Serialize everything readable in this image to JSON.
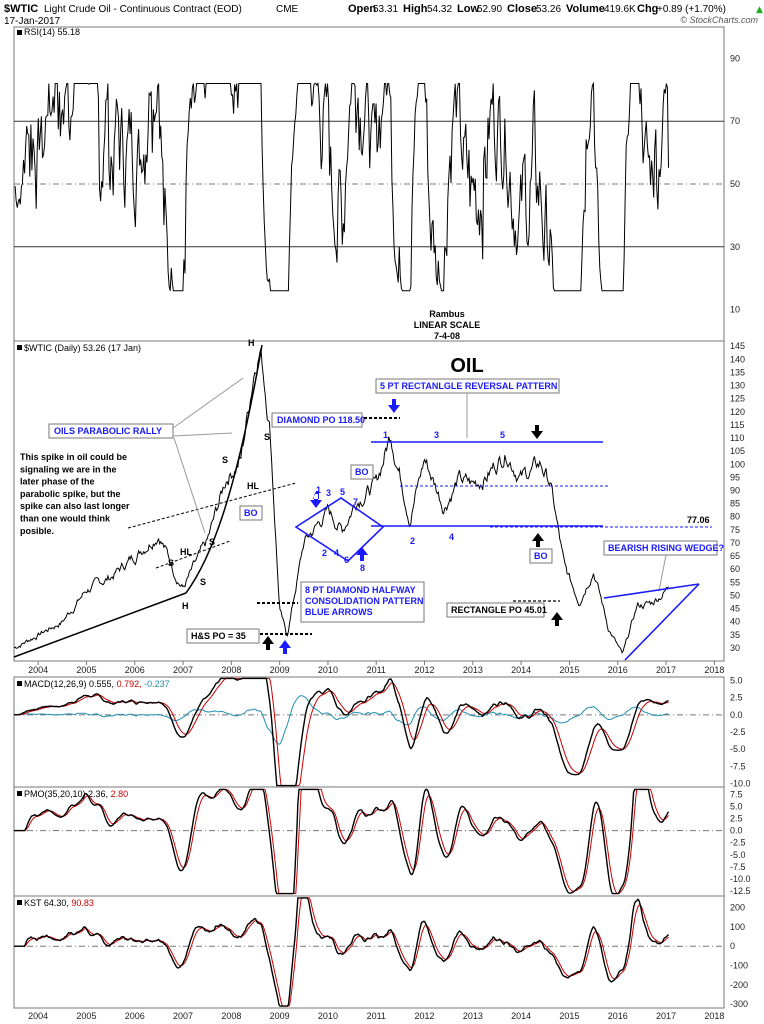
{
  "header": {
    "symbol": "$WTIC",
    "name": "Light Crude Oil - Continuous Contract (EOD)",
    "exchange": "CME",
    "date": "17-Jan-2017",
    "open_label": "Open",
    "open": "53.31",
    "high_label": "High",
    "high": "54.32",
    "low_label": "Low",
    "low": "52.90",
    "close_label": "Close",
    "close": "53.26",
    "volume_label": "Volume",
    "volume": "419.6K",
    "chg_label": "Chg",
    "chg": "+0.89 (+1.70%)",
    "chg_arrow": "▲",
    "brand": "© StockCharts.com"
  },
  "colors": {
    "blue": "#1a1aff",
    "red": "#cc0000",
    "teal": "#1f8fb0",
    "black": "#000000"
  },
  "panels": {
    "rsi": {
      "label": "RSI(14) 55.18"
    },
    "price": {
      "label": "$WTIC (Daily) 53.26 (17 Jan)"
    },
    "macd": {
      "label_prefix": "MACD(12,26,9) 0.555,",
      "signal": "0.792,",
      "hist": "-0.237"
    },
    "pmo": {
      "label_prefix": "PMO(35,20,10) 2.36,",
      "signal": "2.80"
    },
    "kst": {
      "label_prefix": "KST 64.30,",
      "signal": "90.83"
    }
  },
  "annotations": {
    "author": "Rambus",
    "scale": "LINEAR SCALE",
    "date": "7-4-08",
    "big_title": "OIL",
    "parabolic_rally": "OILS PARABOLIC RALLY",
    "spike_note": [
      "This spike in oil could be",
      "signaling we are in the",
      "later phase of the",
      "parabolic spike, but the",
      "spike can also last longer",
      "than one would think",
      "posible."
    ],
    "diamond_po": "DIAMOND PO 118.50",
    "rect_reversal": "5 PT RECTANLGLE REVERSAL PATTERN",
    "diamond_halfway": [
      "8 PT DIAMOND HALFWAY",
      "CONSOLIDATION PATTERN",
      "BLUE ARROWS"
    ],
    "rectangle_po": "RECTANGLE PO 45.01",
    "hs_po": "H&S  PO = 35",
    "bearish_wedge": "BEARISH RISING WEDGE?",
    "level_7706": "77.06",
    "bo": "BO",
    "h": "H",
    "s": "S",
    "hl": "HL",
    "diamond_pts": [
      "1",
      "2",
      "3",
      "4",
      "5",
      "6",
      "7",
      "8"
    ],
    "rect_pts": [
      "1",
      "2",
      "3",
      "4",
      "5"
    ]
  },
  "chart_data": [
    {
      "type": "line",
      "title": "RSI(14) 55.18",
      "ylim": [
        0,
        100
      ],
      "yticks": [
        10,
        30,
        50,
        70,
        90
      ]
    },
    {
      "type": "line",
      "title": "$WTIC (Daily) 53.26 (17 Jan)",
      "ylim": [
        25,
        147
      ],
      "yticks": [
        30,
        35,
        40,
        45,
        50,
        55,
        60,
        65,
        70,
        75,
        80,
        85,
        90,
        95,
        100,
        105,
        110,
        115,
        120,
        125,
        130,
        135,
        140,
        145
      ],
      "x_labels": [
        "2004",
        "2005",
        "2006",
        "2007",
        "2008",
        "2009",
        "2010",
        "2011",
        "2012",
        "2013",
        "2014",
        "2015",
        "2016",
        "2017",
        "2018"
      ],
      "x": [
        2003.5,
        2004.0,
        2004.5,
        2005.0,
        2005.5,
        2006.0,
        2006.5,
        2006.8,
        2007.0,
        2007.5,
        2007.9,
        2008.2,
        2008.5,
        2008.6,
        2008.8,
        2009.0,
        2009.15,
        2009.5,
        2010.0,
        2010.3,
        2010.6,
        2011.0,
        2011.3,
        2011.7,
        2012.0,
        2012.4,
        2012.7,
        2013.0,
        2013.3,
        2013.7,
        2014.0,
        2014.4,
        2014.6,
        2014.9,
        2015.2,
        2015.5,
        2015.8,
        2016.1,
        2016.4,
        2016.7,
        2017.0,
        2017.05
      ],
      "values": [
        30,
        35,
        40,
        52,
        57,
        65,
        74,
        60,
        53,
        70,
        95,
        102,
        140,
        145,
        115,
        45,
        34,
        70,
        82,
        75,
        87,
        92,
        112,
        80,
        102,
        84,
        94,
        92,
        96,
        105,
        95,
        100,
        93,
        60,
        48,
        60,
        38,
        27,
        46,
        47,
        52,
        53.26
      ],
      "levels": {
        "diamond_po": 118.5,
        "rect_top": 110,
        "rect_bottom": 77.06,
        "rect_mid": 92,
        "rectangle_po": 45.01,
        "hs_po": 35
      }
    },
    {
      "type": "line",
      "title": "MACD(12,26,9)",
      "ylim": [
        -10.5,
        5.5
      ],
      "yticks": [
        5.0,
        2.5,
        0.0,
        -2.5,
        -5.0,
        -7.5,
        -10.0
      ],
      "series": [
        {
          "name": "MACD",
          "last": 0.555
        },
        {
          "name": "Signal",
          "last": 0.792
        },
        {
          "name": "Histogram",
          "last": -0.237
        }
      ]
    },
    {
      "type": "line",
      "title": "PMO(35,20,10)",
      "ylim": [
        -13.5,
        9
      ],
      "yticks": [
        7.5,
        5.0,
        2.5,
        0.0,
        -2.5,
        -5.0,
        -7.5,
        -10.0,
        -12.5
      ],
      "series": [
        {
          "name": "PMO",
          "last": 2.36
        },
        {
          "name": "Signal",
          "last": 2.8
        }
      ]
    },
    {
      "type": "line",
      "title": "KST",
      "ylim": [
        -320,
        260
      ],
      "yticks": [
        200,
        100,
        0,
        -100,
        -200,
        -300
      ],
      "x_labels": [
        "2004",
        "2005",
        "2006",
        "2007",
        "2008",
        "2009",
        "2010",
        "2011",
        "2012",
        "2013",
        "2014",
        "2015",
        "2016",
        "2017",
        "2018"
      ],
      "series": [
        {
          "name": "KST",
          "last": 64.3
        },
        {
          "name": "Signal",
          "last": 90.83
        }
      ]
    }
  ]
}
